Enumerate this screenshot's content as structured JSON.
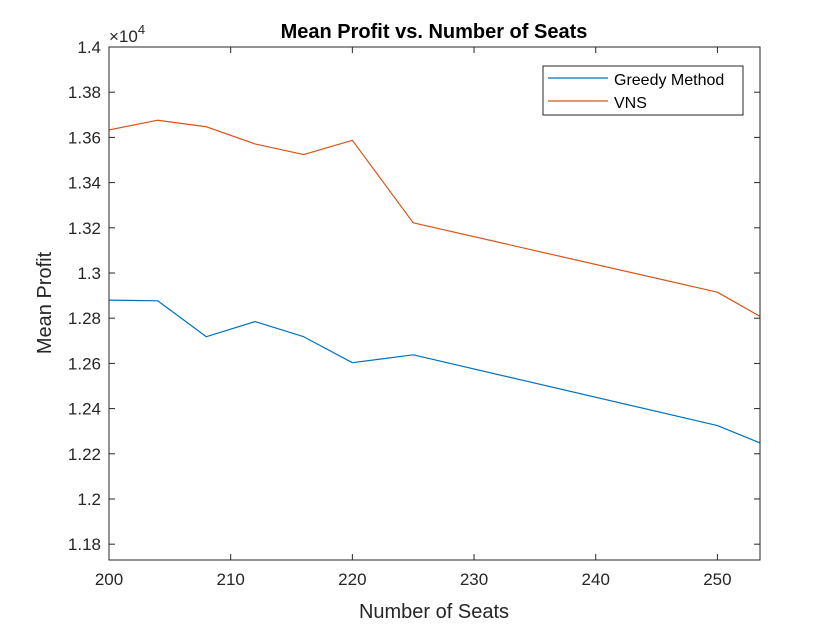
{
  "chart_data": {
    "type": "line",
    "title": "Mean Profit vs. Number of Seats",
    "xlabel": "Number of Seats",
    "ylabel": "Mean Profit",
    "xlim": [
      200,
      253.5
    ],
    "ylim": [
      11730,
      14000
    ],
    "x_ticks": [
      200,
      210,
      220,
      230,
      240,
      250
    ],
    "y_ticks": [
      11800,
      12000,
      12200,
      12400,
      12600,
      12800,
      13000,
      13200,
      13400,
      13600,
      13800,
      14000
    ],
    "y_tick_labels": [
      "1.18",
      "1.2",
      "1.22",
      "1.24",
      "1.26",
      "1.28",
      "1.3",
      "1.32",
      "1.34",
      "1.36",
      "1.38",
      "1.4"
    ],
    "y_exponent_base": "×10",
    "y_exponent_power": "4",
    "legend_position": "top-right",
    "series": [
      {
        "name": "Greedy Method",
        "color": "#0072BD",
        "x": [
          200,
          204,
          208,
          212,
          216,
          220,
          225,
          250,
          253.5
        ],
        "y": [
          12880,
          12877,
          12718,
          12785,
          12718,
          12603,
          12638,
          12325,
          12248
        ]
      },
      {
        "name": "VNS",
        "color": "#D95319",
        "x": [
          200,
          204,
          208,
          212,
          216,
          220,
          225,
          250,
          253.5
        ],
        "y": [
          13633,
          13676,
          13647,
          13571,
          13524,
          13587,
          13222,
          12915,
          12808
        ]
      }
    ]
  }
}
